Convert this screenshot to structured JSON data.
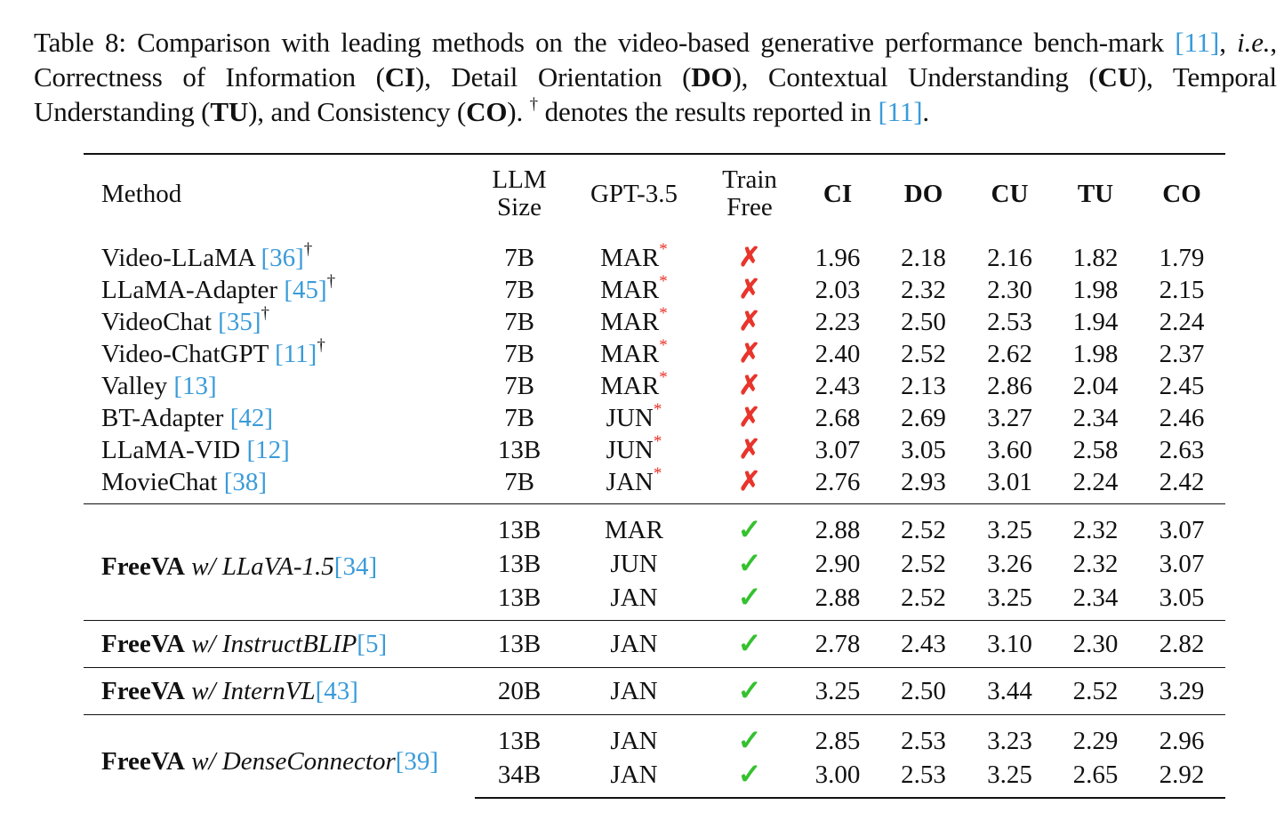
{
  "caption": {
    "t1": "Table 8:  Comparison with leading methods on the video-based generative performance bench-mark ",
    "ref": "[11]",
    "t2": ", ",
    "ie": "i.e.",
    "t3": ", Correctness of Information (",
    "ci": "CI",
    "t4": "), Detail Orientation (",
    "do": "DO",
    "t5": "), Contextual Understanding (",
    "cu": "CU",
    "t6": "), Temporal Understanding (",
    "tu": "TU",
    "t7": "), and Consistency (",
    "co": "CO",
    "t8": ").",
    "dagger": "†",
    "t9": " denotes the results reported in ",
    "ref2": "[11]",
    "t10": "."
  },
  "headers": {
    "method": "Method",
    "llm1": "LLM",
    "llm2": "Size",
    "gpt": "GPT-3.5",
    "train1": "Train",
    "train2": "Free",
    "ci": "CI",
    "do": "DO",
    "cu": "CU",
    "tu": "TU",
    "co": "CO"
  },
  "marks": {
    "cross": "✗",
    "check": "✓",
    "star": "*",
    "dagger": "†"
  },
  "baselines": [
    {
      "name": "Video-LLaMA ",
      "ref": "[36]",
      "dagger": "†",
      "size": "7B",
      "gpt": "MAR",
      "ci": "1.96",
      "do": "2.18",
      "cu": "2.16",
      "tu": "1.82",
      "co": "1.79"
    },
    {
      "name": "LLaMA-Adapter ",
      "ref": "[45]",
      "dagger": "†",
      "size": "7B",
      "gpt": "MAR",
      "ci": "2.03",
      "do": "2.32",
      "cu": "2.30",
      "tu": "1.98",
      "co": "2.15"
    },
    {
      "name": "VideoChat ",
      "ref": "[35]",
      "dagger": "†",
      "size": "7B",
      "gpt": "MAR",
      "ci": "2.23",
      "do": "2.50",
      "cu": "2.53",
      "tu": "1.94",
      "co": "2.24"
    },
    {
      "name": "Video-ChatGPT ",
      "ref": "[11]",
      "dagger": "†",
      "size": "7B",
      "gpt": "MAR",
      "ci": "2.40",
      "do": "2.52",
      "cu": "2.62",
      "tu": "1.98",
      "co": "2.37"
    },
    {
      "name": "Valley ",
      "ref": "[13]",
      "dagger": "",
      "size": "7B",
      "gpt": "MAR",
      "ci": "2.43",
      "do": "2.13",
      "cu": "2.86",
      "tu": "2.04",
      "co": "2.45"
    },
    {
      "name": "BT-Adapter ",
      "ref": "[42]",
      "dagger": "",
      "size": "7B",
      "gpt": "JUN",
      "ci": "2.68",
      "do": "2.69",
      "cu": "3.27",
      "tu": "2.34",
      "co": "2.46"
    },
    {
      "name": "LLaMA-VID ",
      "ref": "[12]",
      "dagger": "",
      "size": "13B",
      "gpt": "JUN",
      "ci": "3.07",
      "do": "3.05",
      "cu": "3.60",
      "tu": "2.58",
      "co": "2.63"
    },
    {
      "name": "MovieChat ",
      "ref": "[38]",
      "dagger": "",
      "size": "7B",
      "gpt": "JAN",
      "ci": "2.76",
      "do": "2.93",
      "cu": "3.01",
      "tu": "2.24",
      "co": "2.42"
    }
  ],
  "groups": [
    {
      "name": "FreeVA",
      "sub": " w/ LLaVA-1.5",
      "ref": "[34]",
      "rows": [
        {
          "size": "13B",
          "gpt": "MAR",
          "ci": "2.88",
          "do": "2.52",
          "cu": "3.25",
          "tu": "2.32",
          "co": "3.07"
        },
        {
          "size": "13B",
          "gpt": "JUN",
          "ci": "2.90",
          "do": "2.52",
          "cu": "3.26",
          "tu": "2.32",
          "co": "3.07"
        },
        {
          "size": "13B",
          "gpt": "JAN",
          "ci": "2.88",
          "do": "2.52",
          "cu": "3.25",
          "tu": "2.34",
          "co": "3.05"
        }
      ]
    },
    {
      "name": "FreeVA",
      "sub": " w/ InstructBLIP",
      "ref": "[5]",
      "rows": [
        {
          "size": "13B",
          "gpt": "JAN",
          "ci": "2.78",
          "do": "2.43",
          "cu": "3.10",
          "tu": "2.30",
          "co": "2.82"
        }
      ]
    },
    {
      "name": "FreeVA",
      "sub": " w/ InternVL",
      "ref": "[43]",
      "rows": [
        {
          "size": "20B",
          "gpt": "JAN",
          "ci": "3.25",
          "do": "2.50",
          "cu": "3.44",
          "tu": "2.52",
          "co": "3.29"
        }
      ]
    },
    {
      "name": "FreeVA",
      "sub": " w/ DenseConnector",
      "ref": "[39]",
      "rows": [
        {
          "size": "13B",
          "gpt": "JAN",
          "ci": "2.85",
          "do": "2.53",
          "cu": "3.23",
          "tu": "2.29",
          "co": "2.96"
        },
        {
          "size": "34B",
          "gpt": "JAN",
          "ci": "3.00",
          "do": "2.53",
          "cu": "3.25",
          "tu": "2.65",
          "co": "2.92"
        }
      ]
    }
  ]
}
